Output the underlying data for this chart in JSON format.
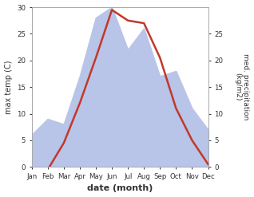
{
  "months": [
    "Jan",
    "Feb",
    "Mar",
    "Apr",
    "May",
    "Jun",
    "Jul",
    "Aug",
    "Sep",
    "Oct",
    "Nov",
    "Dec"
  ],
  "temperature": [
    -0.3,
    -0.5,
    4.5,
    12.0,
    20.5,
    29.5,
    27.5,
    27.0,
    20.5,
    11.0,
    5.0,
    0.5
  ],
  "precipitation": [
    6,
    9,
    8,
    17,
    28,
    30,
    22,
    26,
    17,
    18,
    11,
    7
  ],
  "temp_color": "#c0392b",
  "precip_fill_color": "#b8c4e8",
  "temp_ylim": [
    0,
    30
  ],
  "precip_ylim": [
    0,
    32
  ],
  "right_ylim": [
    0,
    32
  ],
  "right_yticks": [
    0,
    5,
    10,
    15,
    20,
    25
  ],
  "right_ytick_labels": [
    "0",
    "5",
    "10",
    "15",
    "20",
    "25"
  ],
  "left_yticks": [
    0,
    5,
    10,
    15,
    20,
    25,
    30
  ],
  "xlabel": "date (month)",
  "ylabel_left": "max temp (C)",
  "ylabel_right": "med. precipitation\n(kg/m2)",
  "bg_color": "#ffffff",
  "precip_scale_factor": 1.0
}
